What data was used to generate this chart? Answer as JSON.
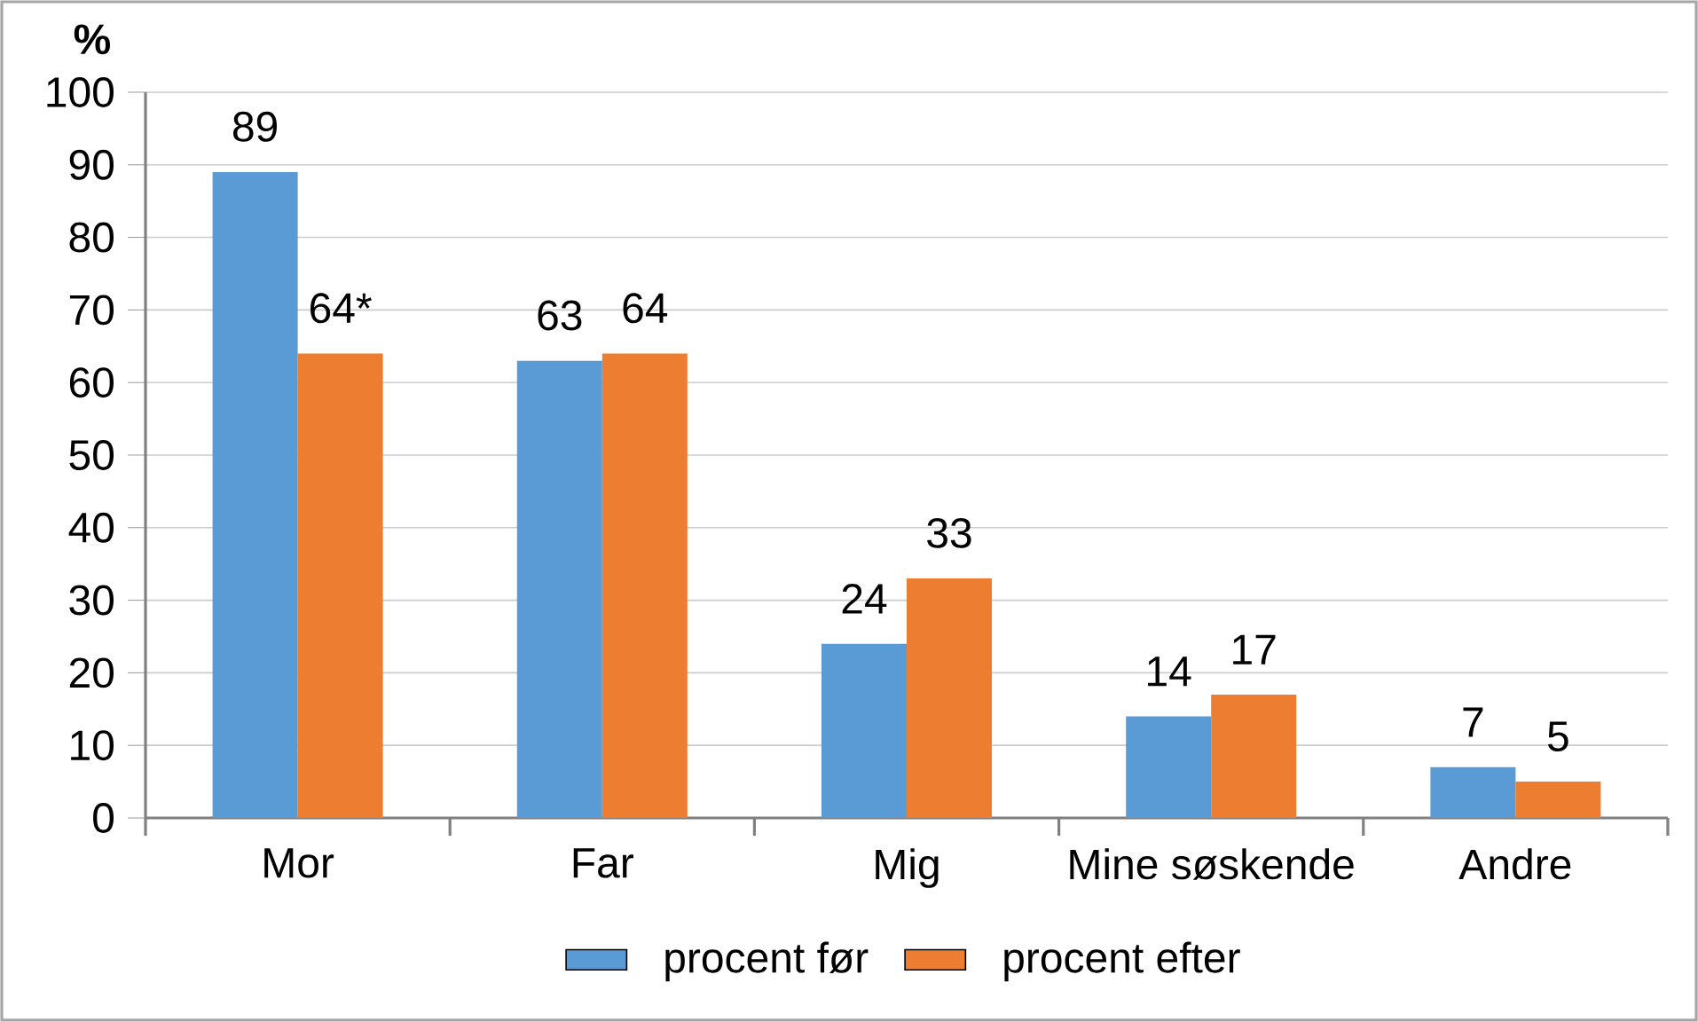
{
  "chart_data": {
    "type": "bar",
    "ylabel": "%",
    "categories": [
      "Mor",
      "Far",
      "Mig",
      "Mine søskende",
      "Andre"
    ],
    "series": [
      {
        "name": "procent før",
        "color": "#5b9bd5",
        "values": [
          89,
          63,
          24,
          14,
          7
        ],
        "value_labels": [
          "89",
          "63",
          "24",
          "14",
          "7"
        ]
      },
      {
        "name": "procent efter",
        "color": "#ed7d31",
        "values": [
          64,
          64,
          33,
          17,
          5
        ],
        "value_labels": [
          "64*",
          "64",
          "33",
          "17",
          "5"
        ]
      }
    ],
    "ylim": [
      0,
      100
    ],
    "yticks": [
      0,
      10,
      20,
      30,
      40,
      50,
      60,
      70,
      80,
      90,
      100
    ],
    "grid": "y",
    "legend": "bottom"
  }
}
